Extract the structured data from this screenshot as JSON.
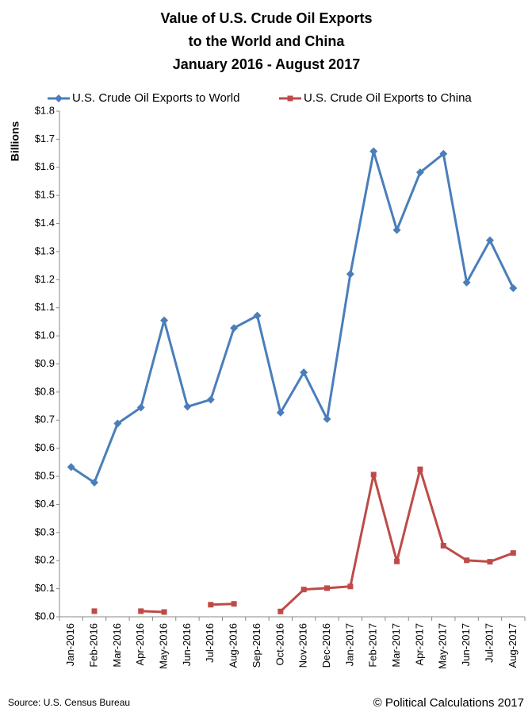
{
  "chart_data": {
    "type": "line",
    "title": [
      "Value of U.S. Crude Oil Exports",
      "to the World and China",
      "January 2016 - August 2017"
    ],
    "y_label": "Billions",
    "categories": [
      "Jan-2016",
      "Feb-2016",
      "Mar-2016",
      "Apr-2016",
      "May-2016",
      "Jun-2016",
      "Jul-2016",
      "Aug-2016",
      "Sep-2016",
      "Oct-2016",
      "Nov-2016",
      "Dec-2016",
      "Jan-2017",
      "Feb-2017",
      "Mar-2017",
      "Apr-2017",
      "May-2017",
      "Jun-2017",
      "Jul-2017",
      "Aug-2017"
    ],
    "series": [
      {
        "name": "U.S. Crude Oil Exports to World",
        "color": "#4a7ebb",
        "marker": "diamond",
        "values": [
          0.533,
          0.478,
          0.688,
          0.745,
          1.055,
          0.748,
          0.773,
          1.028,
          1.072,
          0.727,
          0.87,
          0.704,
          1.22,
          1.657,
          1.377,
          1.582,
          1.648,
          1.19,
          1.34,
          1.17
        ]
      },
      {
        "name": "U.S. Crude Oil Exports to China",
        "color": "#be4b48",
        "marker": "square",
        "values": [
          null,
          0.02,
          null,
          0.02,
          0.017,
          null,
          0.043,
          0.046,
          null,
          0.019,
          0.097,
          0.102,
          0.108,
          0.506,
          0.197,
          0.525,
          0.253,
          0.201,
          0.196,
          0.227
        ]
      }
    ],
    "ylim": [
      0,
      1.8
    ],
    "yticks": [
      {
        "value": 0,
        "label": "$0.0"
      },
      {
        "value": 0.1,
        "label": "$0.1"
      },
      {
        "value": 0.2,
        "label": "$0.2"
      },
      {
        "value": 0.3,
        "label": "$0.3"
      },
      {
        "value": 0.4,
        "label": "$0.4"
      },
      {
        "value": 0.5,
        "label": "$0.5"
      },
      {
        "value": 0.6,
        "label": "$0.6"
      },
      {
        "value": 0.7,
        "label": "$0.7"
      },
      {
        "value": 0.8,
        "label": "$0.8"
      },
      {
        "value": 0.9,
        "label": "$0.9"
      },
      {
        "value": 1.0,
        "label": "$1.0"
      },
      {
        "value": 1.1,
        "label": "$1.1"
      },
      {
        "value": 1.2,
        "label": "$1.2"
      },
      {
        "value": 1.3,
        "label": "$1.3"
      },
      {
        "value": 1.4,
        "label": "$1.4"
      },
      {
        "value": 1.5,
        "label": "$1.5"
      },
      {
        "value": 1.6,
        "label": "$1.6"
      },
      {
        "value": 1.7,
        "label": "$1.7"
      },
      {
        "value": 1.8,
        "label": "$1.8"
      }
    ],
    "grid": false,
    "source": "Source: U.S. Census Bureau",
    "credit": "© Political Calculations 2017"
  }
}
